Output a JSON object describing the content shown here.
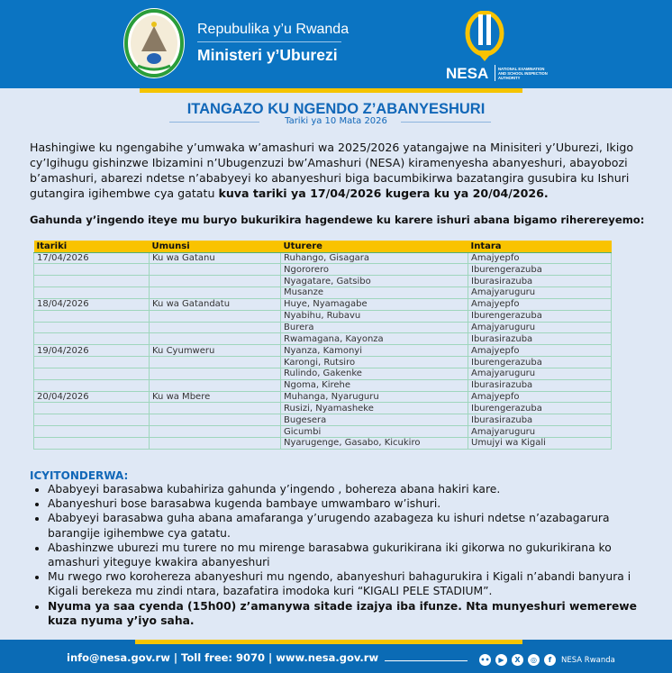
{
  "header": {
    "republic": "Repubulika y’u Rwanda",
    "ministry": "Ministeri y’Uburezi",
    "nesa_logo_text": "NESA",
    "nesa_full": "NATIONAL EXAMINATION AND SCHOOL INSPECTION AUTHORITY"
  },
  "title": "ITANGAZO KU NGENDO Z’ABANYESHURI",
  "date": "Tariki ya 10 Mata 2026",
  "intro": "Hashingiwe ku ngengabihe y’umwaka w’amashuri wa 2025/2026 yatangajwe na Minisiteri y’Uburezi, Ikigo cy’Igihugu gishinzwe Ibizamini n’Ubugenzuzi bw’Amashuri (NESA) kiramenyesha abanyeshuri, abayobozi b’amashuri, abarezi ndetse n’ababyeyi ko abanyeshuri biga bacumbikirwa bazatangira gusubira ku Ishuri gutangira igihembwe cya gatatu ",
  "intro_bold": "kuva tariki ya 17/04/2026 kugera ku ya 20/04/2026.",
  "schedule_heading": "Gahunda y’ingendo iteye mu buryo bukurikira hagendewe ku karere ishuri abana bigamo riherereyemo:",
  "table": {
    "headers": [
      "Itariki",
      "Umunsi",
      "Uturere",
      "Intara"
    ],
    "rows": [
      [
        "17/04/2026",
        "Ku wa Gatanu",
        "Ruhango, Gisagara",
        "Amajyepfo"
      ],
      [
        "",
        "",
        "Ngororero",
        "Iburengerazuba"
      ],
      [
        "",
        "",
        "Nyagatare, Gatsibo",
        "Iburasirazuba"
      ],
      [
        "",
        "",
        "Musanze",
        "Amajyaruguru"
      ],
      [
        "18/04/2026",
        "Ku wa Gatandatu",
        "Huye, Nyamagabe",
        "Amajyepfo"
      ],
      [
        "",
        "",
        "Nyabihu, Rubavu",
        "Iburengerazuba"
      ],
      [
        "",
        "",
        "Burera",
        "Amajyaruguru"
      ],
      [
        "",
        "",
        "Rwamagana, Kayonza",
        "Iburasirazuba"
      ],
      [
        "19/04/2026",
        "Ku Cyumweru",
        "Nyanza, Kamonyi",
        "Amajyepfo"
      ],
      [
        "",
        "",
        "Karongi, Rutsiro",
        "Iburengerazuba"
      ],
      [
        "",
        "",
        "Rulindo, Gakenke",
        "Amajyaruguru"
      ],
      [
        "",
        "",
        "Ngoma, Kirehe",
        "Iburasirazuba"
      ],
      [
        "20/04/2026",
        "Ku wa Mbere",
        "Muhanga, Nyaruguru",
        "Amajyepfo"
      ],
      [
        "",
        "",
        "Rusizi, Nyamasheke",
        "Iburengerazuba"
      ],
      [
        "",
        "",
        "Bugesera",
        "Iburasirazuba"
      ],
      [
        "",
        "",
        "Gicumbi",
        "Amajyaruguru"
      ],
      [
        "",
        "",
        "Nyarugenge, Gasabo, Kicukiro",
        "Umujyi wa Kigali"
      ]
    ]
  },
  "notes": {
    "heading": "ICYITONDERWA:",
    "items": [
      "Ababyeyi barasabwa kubahiriza gahunda  y’ingendo , bohereza abana hakiri kare.",
      "Abanyeshuri bose barasabwa kugenda bambaye umwambaro w’ishuri.",
      "Ababyeyi barasabwa guha abana amafaranga y’urugendo azabageza ku ishuri ndetse n’azabagarura barangije igihembwe cya gatatu.",
      "Abashinzwe uburezi mu turere no mu mirenge barasabwa gukurikirana iki gikorwa no gukurikirana ko amashuri yiteguye kwakira abanyeshuri",
      "Mu rwego rwo korohereza abanyeshuri mu ngendo, abanyeshuri bahagurukira i Kigali n’abandi banyura i Kigali berekeza mu zindi ntara, bazafatira imodoka kuri “KIGALI PELE STADIUM”."
    ],
    "bold_item": "Nyuma ya saa cyenda (15h00) z’amanywa sitade izajya iba ifunze. Nta munyeshuri wemerewe kuza nyuma y’iyo saha."
  },
  "footer": {
    "contact": "info@nesa.gov.rw | Toll free: 9070 | www.nesa.gov.rw",
    "social_name": "NESA Rwanda",
    "social_icons": [
      "flickr-icon",
      "youtube-icon",
      "x-icon",
      "instagram-icon",
      "facebook-icon"
    ]
  },
  "colors": {
    "blue": "#0b74c2",
    "yellow": "#f9c300",
    "title_blue": "#1167b8",
    "background": "#dfe8f5"
  }
}
